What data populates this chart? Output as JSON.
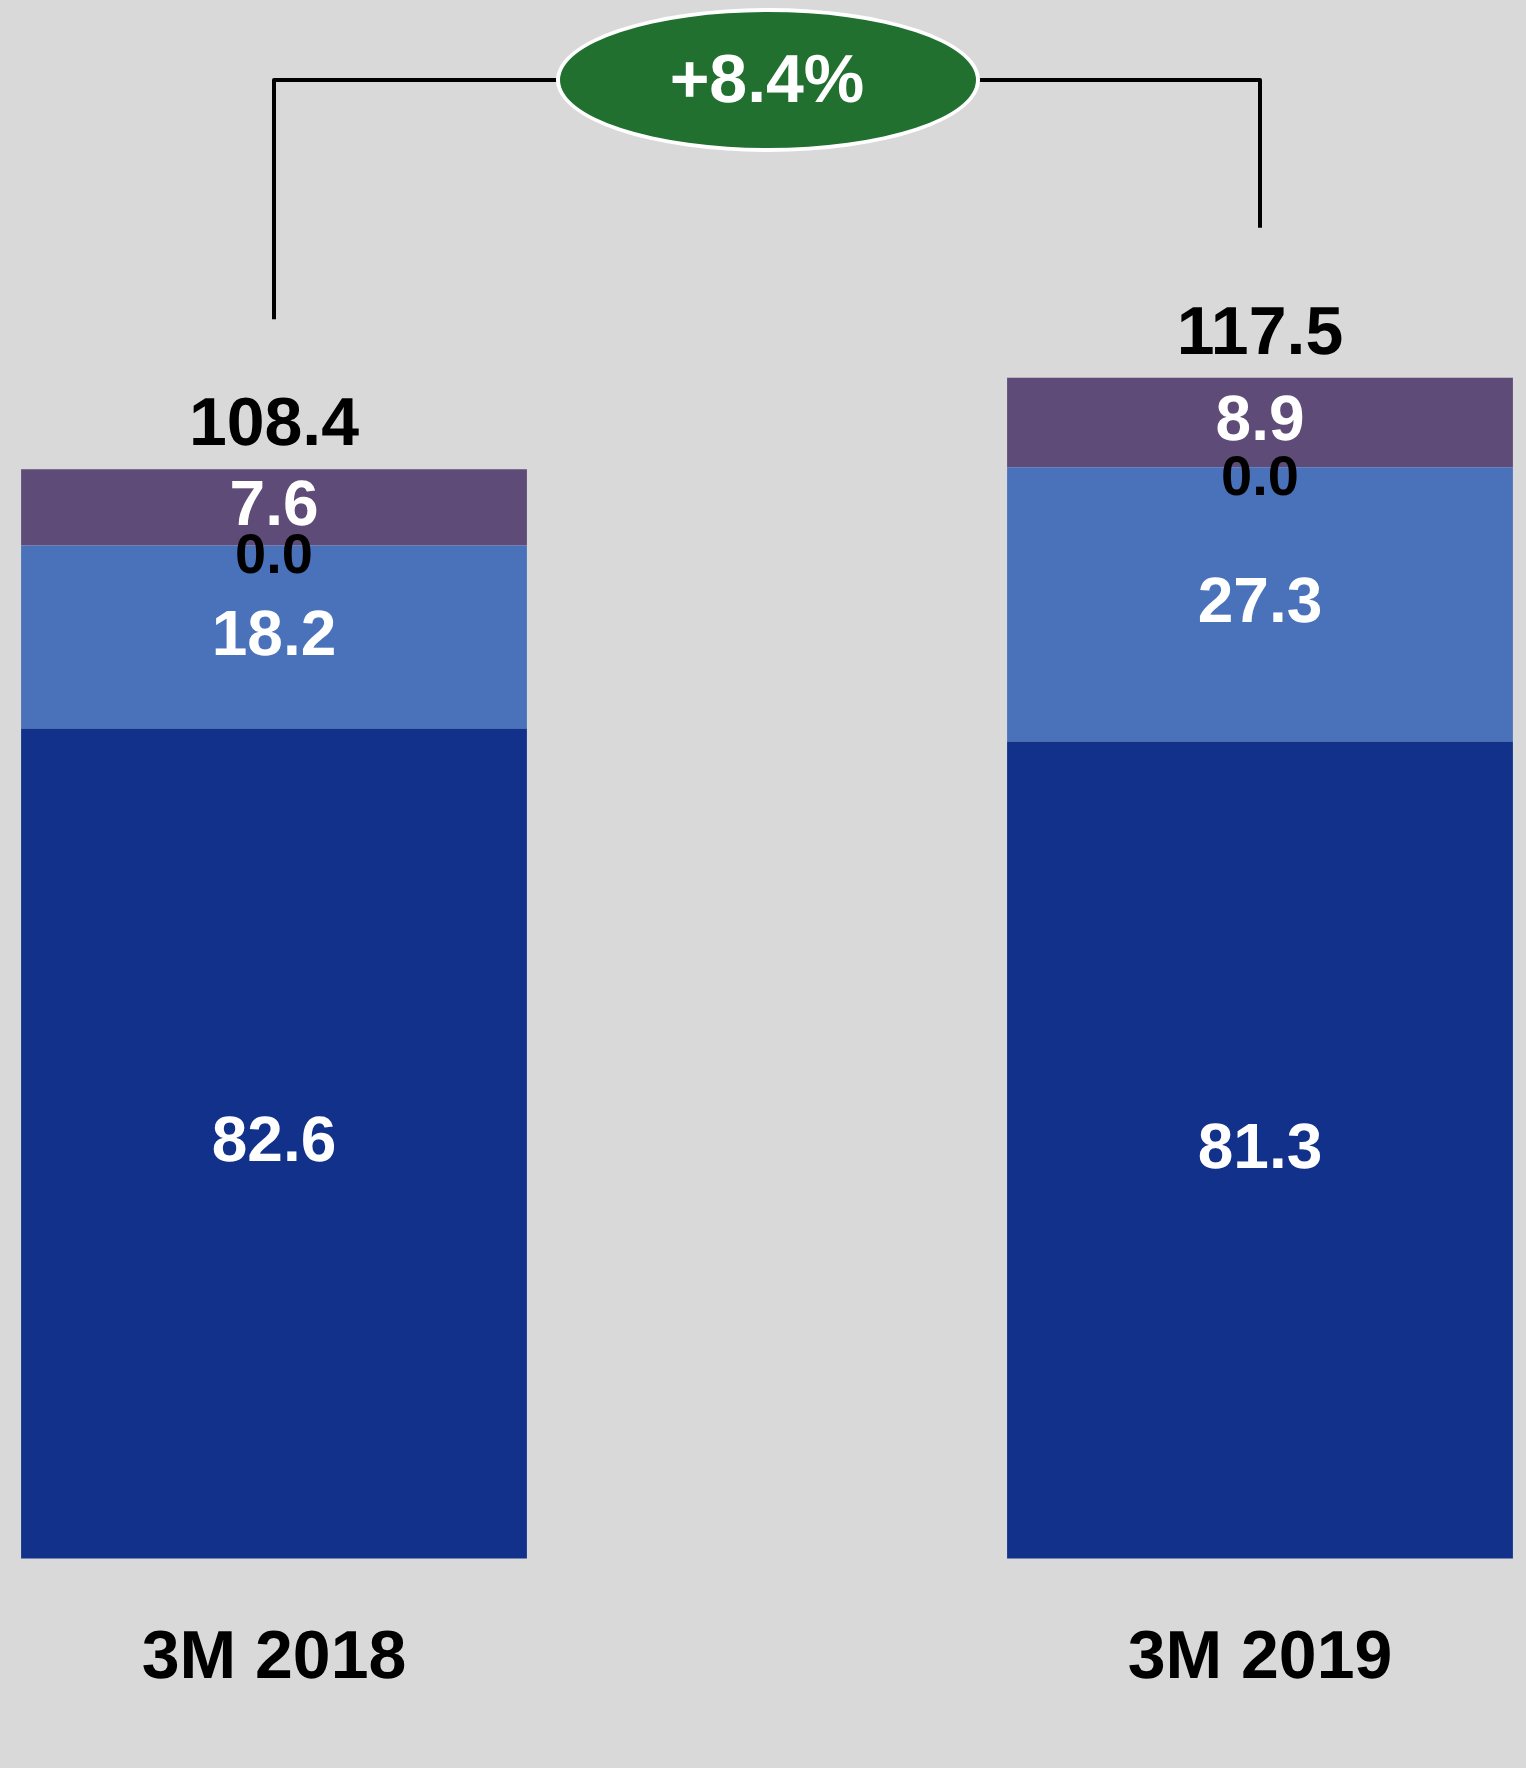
{
  "chart_data": {
    "type": "bar",
    "stacked": true,
    "categories": [
      "3M 2018",
      "3M 2019"
    ],
    "series": [
      {
        "color": "#11318a",
        "values": [
          82.6,
          81.3
        ],
        "value_labels": [
          "82.6",
          "81.3"
        ]
      },
      {
        "color": "#4a72bb",
        "values": [
          18.2,
          27.3
        ],
        "value_labels": [
          "18.2",
          "27.3"
        ]
      },
      {
        "values": [
          0,
          0
        ],
        "value_labels": [
          "0.0",
          "0.0"
        ]
      },
      {
        "color": "#5e4b78",
        "values": [
          7.6,
          8.9
        ],
        "value_labels": [
          "7.6",
          "8.9"
        ]
      }
    ],
    "totals": [
      "108.4",
      "117.5"
    ],
    "annotations": [
      "+8.4%"
    ],
    "tick_labels": "x"
  }
}
